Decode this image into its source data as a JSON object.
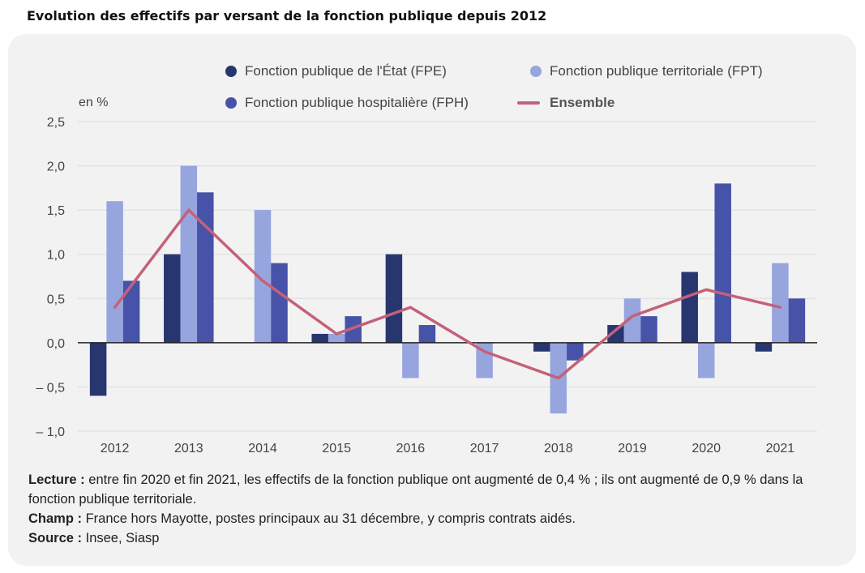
{
  "title": "Evolution des effectifs par versant de la fonction publique depuis 2012",
  "notes": {
    "lecture_label": "Lecture :",
    "lecture_text": " entre fin 2020 et fin 2021, les effectifs de la fonction publique ont augmenté de 0,4 % ; ils ont augmenté de 0,9 % dans la fonction publique territoriale.",
    "champ_label": "Champ :",
    "champ_text": " France hors Mayotte, postes principaux au 31 décembre, y compris contrats aidés.",
    "source_label": "Source :",
    "source_text": " Insee, Siasp"
  },
  "chart_data": {
    "type": "bar",
    "ylabel": "en %",
    "ylim": [
      -1.0,
      2.5
    ],
    "yticks": [
      2.5,
      2.0,
      1.5,
      1.0,
      0.5,
      0.0,
      -0.5,
      -1.0
    ],
    "ytick_labels": [
      "2,5",
      "2,0",
      "1,5",
      "1,0",
      "0,5",
      "0,0",
      "– 0,5",
      "– 1,0"
    ],
    "grid": true,
    "legend_position": "top",
    "categories": [
      "2012",
      "2013",
      "2014",
      "2015",
      "2016",
      "2017",
      "2018",
      "2019",
      "2020",
      "2021"
    ],
    "series": [
      {
        "name": "Fonction publique de l'État (FPE)",
        "kind": "bar",
        "color": "#283670",
        "values": [
          -0.6,
          1.0,
          0.0,
          0.1,
          1.0,
          0.0,
          -0.1,
          0.2,
          0.8,
          -0.1
        ]
      },
      {
        "name": "Fonction publique territoriale (FPT)",
        "kind": "bar",
        "color": "#97a5de",
        "values": [
          1.6,
          2.0,
          1.5,
          0.1,
          -0.4,
          -0.4,
          -0.8,
          0.5,
          -0.4,
          0.9
        ]
      },
      {
        "name": "Fonction publique hospitalière (FPH)",
        "kind": "bar",
        "color": "#4653a8",
        "values": [
          0.7,
          1.7,
          0.9,
          0.3,
          0.2,
          0.0,
          -0.2,
          0.3,
          1.8,
          0.5
        ]
      },
      {
        "name": "Ensemble",
        "kind": "line",
        "color": "#c46178",
        "values": [
          0.4,
          1.5,
          0.7,
          0.1,
          0.4,
          -0.1,
          -0.4,
          0.3,
          0.6,
          0.4
        ]
      }
    ]
  }
}
